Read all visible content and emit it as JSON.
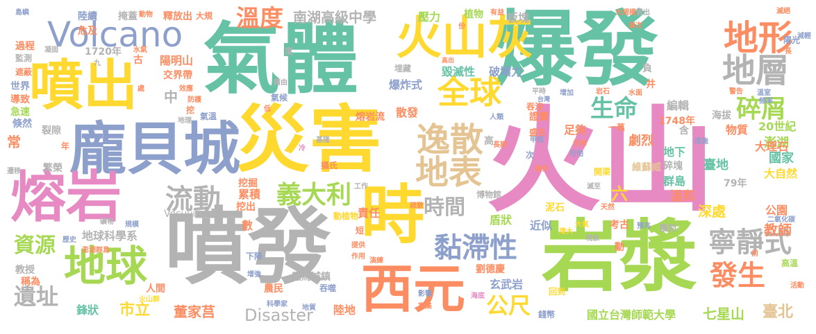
{
  "palette": {
    "teal": "#66c2a5",
    "orange": "#fc8d62",
    "blue": "#8da0cb",
    "pink": "#e78ac3",
    "green": "#a6d854",
    "yellow": "#ffd92f",
    "tan": "#e5c494",
    "gray": "#b3b3b3"
  },
  "words": {
    "w01": "火山",
    "w02": "噴發",
    "w03": "爆發",
    "w04": "氣體",
    "w05": "岩漿",
    "w06": "災害",
    "w07": "龐貝城",
    "w08": "熔岩",
    "w09": "噴出",
    "w10": "火山灰",
    "w11": "西元",
    "w12": "時",
    "w13": "地球",
    "w14": "Volcano",
    "w15": "地形",
    "w16": "地層",
    "w17": "全球",
    "w18": "逸散",
    "w19": "地表",
    "w20": "寧靜式",
    "w21": "黏滯性",
    "w22": "流動",
    "w23": "義大利",
    "w24": "發生",
    "w25": "碎屑",
    "w26": "生命",
    "w27": "溫度",
    "w28": "遺址",
    "w29": "資源",
    "w30": "時間",
    "w31": "公尺",
    "w32": "南湖高級中學",
    "w33": "Disaster",
    "w34": "國立台灣師範大學",
    "w35": "七星山",
    "w36": "臺北",
    "w37": "市立",
    "w38": "董家莒",
    "w39": "地球科學系",
    "w40": "教授",
    "w41": "稱為",
    "w42": "鋒狀",
    "w43": "陸地",
    "w44": "教師",
    "w45": "公園",
    "w46": "大自然",
    "w47": "國家",
    "w48": "臺地",
    "w49": "澎湖",
    "w50": "深處",
    "w51": "溫和",
    "w52": "群島",
    "w53": "20世紀",
    "w54": "大理石",
    "w55": "物質",
    "w56": "1748年",
    "w57": "劇烈",
    "w58": "地下",
    "w59": "碎塊",
    "w60": "維蘇威",
    "w61": "足夠",
    "w62": "盛名",
    "w63": "一萬",
    "w64": "開渠",
    "w65": "毀滅性",
    "w66": "破壞力",
    "w67": "爆炸式",
    "w68": "板塊",
    "w69": "壓力",
    "w70": "植物",
    "w71": "陽明山",
    "w72": "交界帶",
    "w73": "釋放出",
    "w74": "大規",
    "w75": "掩蓋",
    "w76": "陸續",
    "w77": "1720年",
    "w78": "過程",
    "w79": "監測",
    "w80": "遮蔽",
    "w81": "世界",
    "w82": "導致",
    "w83": "急速",
    "w84": "倏然",
    "w85": "裂隙",
    "w86": "繁榮",
    "w87": "常",
    "w88": "累積",
    "w89": "挖掘",
    "w90": "挖出",
    "w91": "責任",
    "w92": "散發",
    "w93": "編輯",
    "w94": "海拔",
    "w95": "六",
    "w96": "盾狀",
    "w97": "近似",
    "w98": "劉德慶",
    "w99": "玄武岩",
    "w100": "羅馬城鎮",
    "w101": "農民",
    "w102": "吞噬",
    "w103": "人間",
    "w104": "火山群",
    "w105": "澎湖群島",
    "w106": "歷史",
    "w107": "規模",
    "w108": "Vesuvius",
    "w109": "數",
    "w110": "動植物",
    "w111": "短",
    "w112": "工作",
    "w113": "博物館",
    "w114": "泥石",
    "w115": "中",
    "w116": "79年",
    "w117": "氣溫",
    "w118": "熔岩流",
    "w119": "度",
    "w120": "高",
    "w121": "攝氏",
    "w122": "地質",
    "w123": "科學家",
    "w124": "影響",
    "w125": "富集",
    "w126": "海底",
    "w127": "回到",
    "w128": "錢幣",
    "w129": "動",
    "w130": "考古",
    "w131": "雕刻",
    "w132": "二氧化碳",
    "w133": "高溫",
    "w134": "活動",
    "w135": "地理",
    "w136": "島嶼",
    "w137": "危及",
    "w138": "古",
    "w139": "次",
    "w140": "負",
    "w141": "井",
    "w142": "陽光",
    "w143": "長",
    "w144": "減輕",
    "w145": "滅絕",
    "w146": "漸次",
    "w147": "溫室",
    "w148": "頻率",
    "w149": "警告",
    "w150": "有益",
    "w151": "份",
    "w152": "動物",
    "w153": "水氣",
    "w154": "藉由",
    "w155": "氣候",
    "w156": "效應",
    "w157": "防護",
    "w158": "挖",
    "w159": "低",
    "w160": "處",
    "w161": "高出",
    "w162": "埋藏",
    "w163": "平時",
    "w164": "台灣",
    "w165": "增加",
    "w166": "岩石",
    "w167": "證實",
    "w168": "吞沒",
    "w169": "甲烷",
    "w170": "人類",
    "w171": "長期",
    "w172": "生物",
    "w173": "可怕",
    "w174": "事件",
    "w175": "滅至",
    "w176": "天然",
    "w177": "大氣",
    "w178": "增大",
    "w179": "現象",
    "w180": "預兆",
    "w181": "前",
    "w182": "措施",
    "w183": "基隆",
    "w184": "冷",
    "w185": "九",
    "w186": "凝固",
    "w187": "提供",
    "w188": "作用",
    "w189": "演練",
    "w190": "疏散",
    "w191": "增強",
    "w192": "下降",
    "w193": "礦物",
    "w194": "遷移",
    "w195": "年",
    "w196": "含",
    "w197": "水面",
    "w198": "冒出",
    "w199": "大規模"
  }
}
